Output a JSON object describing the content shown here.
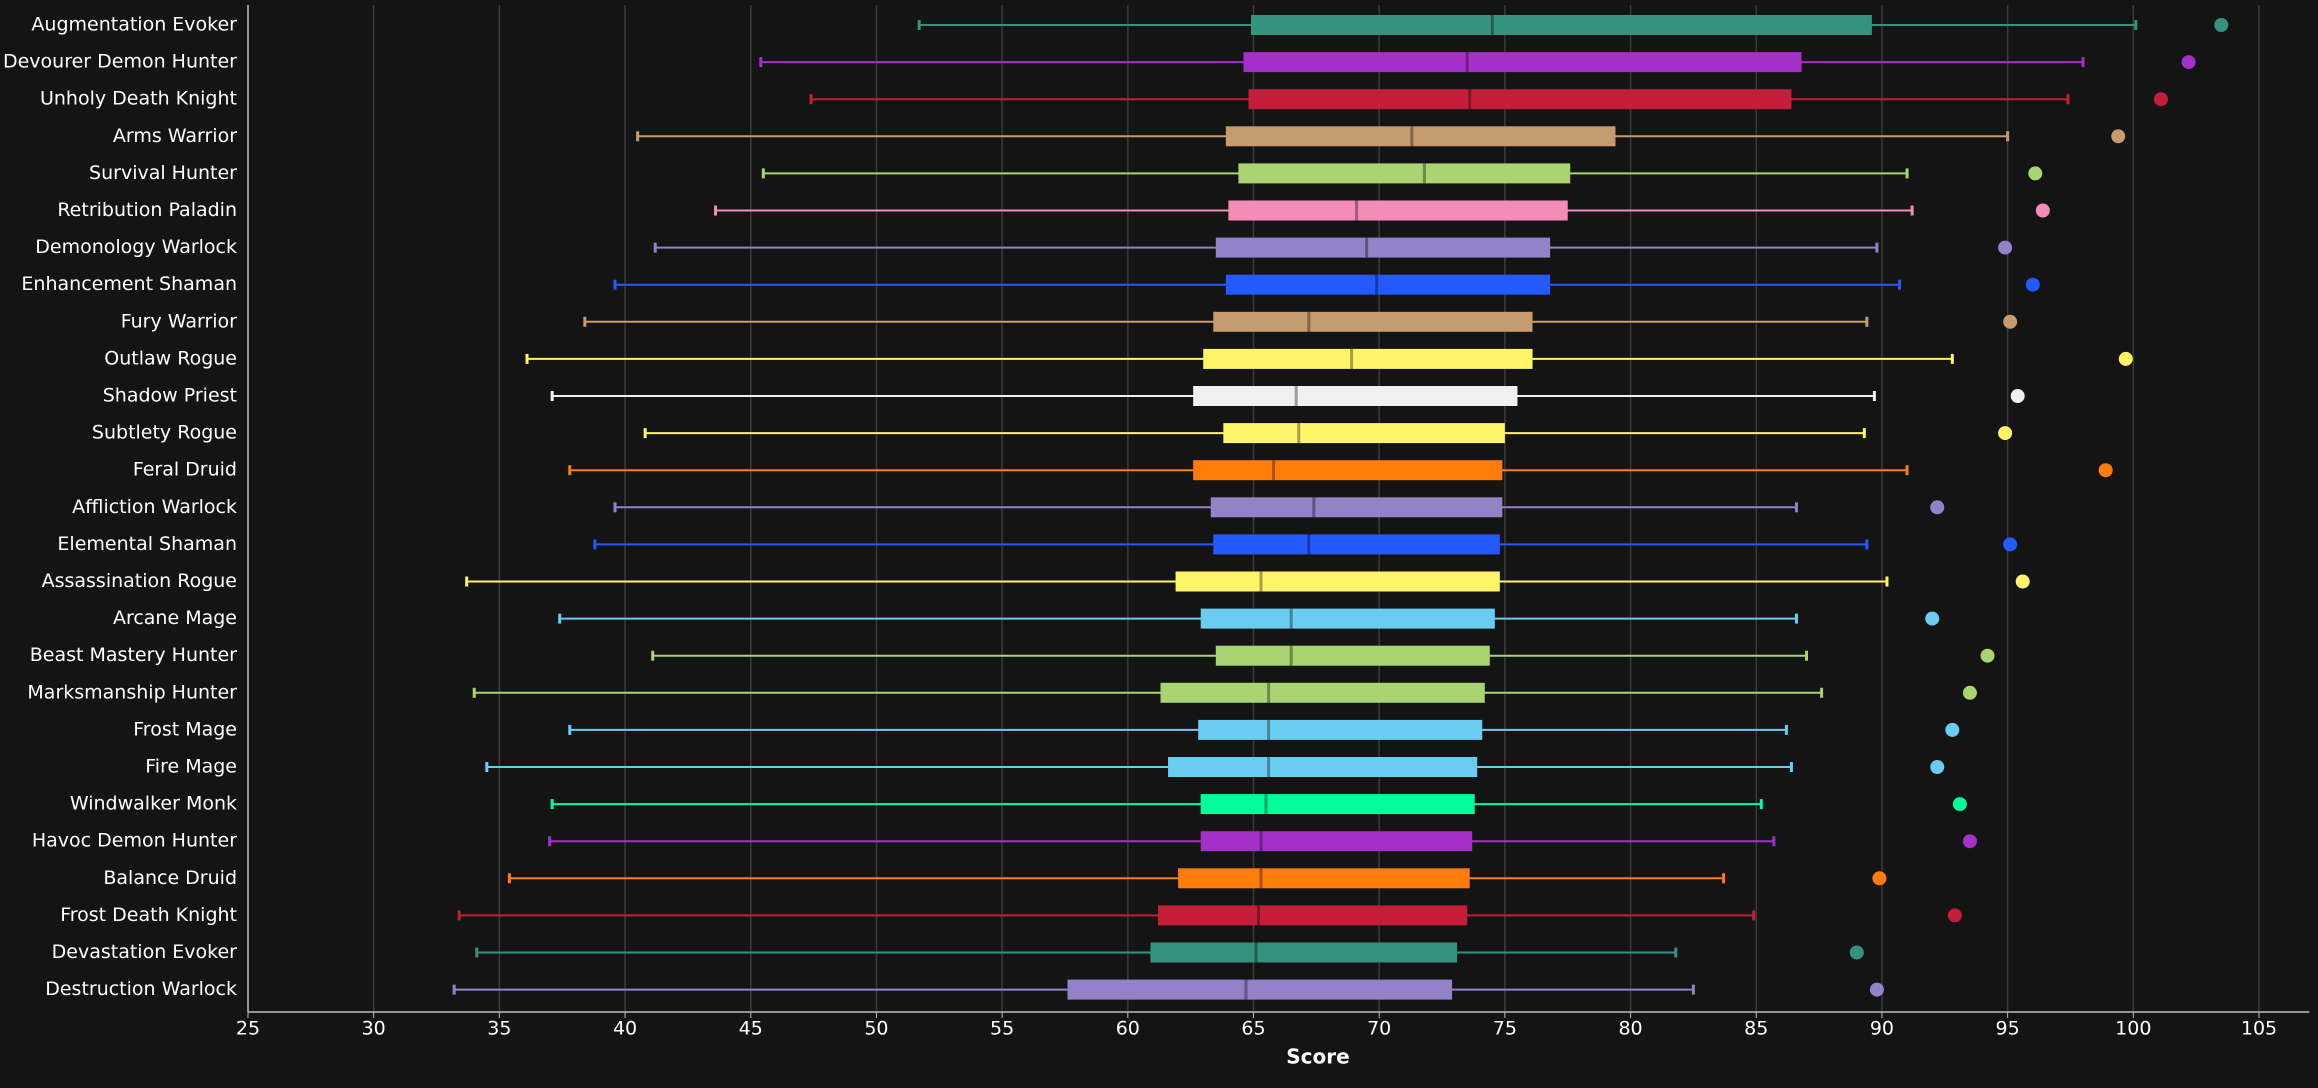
{
  "chart_data": {
    "type": "boxplot",
    "x_label": "Score",
    "xlim": [
      25,
      107
    ],
    "xticks": [
      25,
      30,
      35,
      40,
      45,
      50,
      55,
      60,
      65,
      70,
      75,
      80,
      85,
      90,
      95,
      100,
      105
    ],
    "grid": true,
    "categories": [
      "Augmentation Evoker",
      "Devourer Demon Hunter",
      "Unholy Death Knight",
      "Arms Warrior",
      "Survival Hunter",
      "Retribution Paladin",
      "Demonology Warlock",
      "Enhancement Shaman",
      "Fury Warrior",
      "Outlaw Rogue",
      "Shadow Priest",
      "Subtlety Rogue",
      "Feral Druid",
      "Affliction Warlock",
      "Elemental Shaman",
      "Assassination Rogue",
      "Arcane Mage",
      "Beast Mastery Hunter",
      "Marksmanship Hunter",
      "Frost Mage",
      "Fire Mage",
      "Windwalker Monk",
      "Havoc Demon Hunter",
      "Balance Druid",
      "Frost Death Knight",
      "Devastation Evoker",
      "Destruction Warlock"
    ],
    "boxes": [
      {
        "min": 51.7,
        "q1": 64.9,
        "median": 74.5,
        "q3": 89.6,
        "max": 100.1,
        "outlier": 103.5,
        "color": "#33937f"
      },
      {
        "min": 45.4,
        "q1": 64.6,
        "median": 73.5,
        "q3": 86.8,
        "max": 98.0,
        "outlier": 102.2,
        "color": "#a330c9"
      },
      {
        "min": 47.4,
        "q1": 64.8,
        "median": 73.6,
        "q3": 86.4,
        "max": 97.4,
        "outlier": 101.1,
        "color": "#c41e3a"
      },
      {
        "min": 40.5,
        "q1": 63.9,
        "median": 71.3,
        "q3": 79.4,
        "max": 95.0,
        "outlier": 99.4,
        "color": "#c69b6d"
      },
      {
        "min": 45.5,
        "q1": 64.4,
        "median": 71.8,
        "q3": 77.6,
        "max": 91.0,
        "outlier": 96.1,
        "color": "#aad372"
      },
      {
        "min": 43.6,
        "q1": 64.0,
        "median": 69.1,
        "q3": 77.5,
        "max": 91.2,
        "outlier": 96.4,
        "color": "#f48cba"
      },
      {
        "min": 41.2,
        "q1": 63.5,
        "median": 69.5,
        "q3": 76.8,
        "max": 89.8,
        "outlier": 94.9,
        "color": "#9482c9"
      },
      {
        "min": 39.6,
        "q1": 63.9,
        "median": 69.9,
        "q3": 76.8,
        "max": 90.7,
        "outlier": 96.0,
        "color": "#2459ff"
      },
      {
        "min": 38.4,
        "q1": 63.4,
        "median": 67.2,
        "q3": 76.1,
        "max": 89.4,
        "outlier": 95.1,
        "color": "#c69b6d"
      },
      {
        "min": 36.1,
        "q1": 63.0,
        "median": 68.9,
        "q3": 76.1,
        "max": 92.8,
        "outlier": 99.7,
        "color": "#fff468"
      },
      {
        "min": 37.1,
        "q1": 62.6,
        "median": 66.7,
        "q3": 75.5,
        "max": 89.7,
        "outlier": 95.4,
        "color": "#f0f0f0"
      },
      {
        "min": 40.8,
        "q1": 63.8,
        "median": 66.8,
        "q3": 75.0,
        "max": 89.3,
        "outlier": 94.9,
        "color": "#fff468"
      },
      {
        "min": 37.8,
        "q1": 62.6,
        "median": 65.8,
        "q3": 74.9,
        "max": 91.0,
        "outlier": 98.9,
        "color": "#ff7c0a"
      },
      {
        "min": 39.6,
        "q1": 63.3,
        "median": 67.4,
        "q3": 74.9,
        "max": 86.6,
        "outlier": 92.2,
        "color": "#9482c9"
      },
      {
        "min": 38.8,
        "q1": 63.4,
        "median": 67.2,
        "q3": 74.8,
        "max": 89.4,
        "outlier": 95.1,
        "color": "#2459ff"
      },
      {
        "min": 33.7,
        "q1": 61.9,
        "median": 65.3,
        "q3": 74.8,
        "max": 90.2,
        "outlier": 95.6,
        "color": "#fff468"
      },
      {
        "min": 37.4,
        "q1": 62.9,
        "median": 66.5,
        "q3": 74.6,
        "max": 86.6,
        "outlier": 92.0,
        "color": "#69ccf0"
      },
      {
        "min": 41.1,
        "q1": 63.5,
        "median": 66.5,
        "q3": 74.4,
        "max": 87.0,
        "outlier": 94.2,
        "color": "#aad372"
      },
      {
        "min": 34.0,
        "q1": 61.3,
        "median": 65.6,
        "q3": 74.2,
        "max": 87.6,
        "outlier": 93.5,
        "color": "#aad372"
      },
      {
        "min": 37.8,
        "q1": 62.8,
        "median": 65.6,
        "q3": 74.1,
        "max": 86.2,
        "outlier": 92.8,
        "color": "#69ccf0"
      },
      {
        "min": 34.5,
        "q1": 61.6,
        "median": 65.6,
        "q3": 73.9,
        "max": 86.4,
        "outlier": 92.2,
        "color": "#69ccf0"
      },
      {
        "min": 37.1,
        "q1": 62.9,
        "median": 65.5,
        "q3": 73.8,
        "max": 85.2,
        "outlier": 93.1,
        "color": "#00ff98"
      },
      {
        "min": 37.0,
        "q1": 62.9,
        "median": 65.3,
        "q3": 73.7,
        "max": 85.7,
        "outlier": 93.5,
        "color": "#a330c9"
      },
      {
        "min": 35.4,
        "q1": 62.0,
        "median": 65.3,
        "q3": 73.6,
        "max": 83.7,
        "outlier": 89.9,
        "color": "#ff7c0a"
      },
      {
        "min": 33.4,
        "q1": 61.2,
        "median": 65.2,
        "q3": 73.5,
        "max": 84.9,
        "outlier": 92.9,
        "color": "#c41e3a"
      },
      {
        "min": 34.1,
        "q1": 60.9,
        "median": 65.1,
        "q3": 73.1,
        "max": 81.8,
        "outlier": 89.0,
        "color": "#33937f"
      },
      {
        "min": 33.2,
        "q1": 57.6,
        "median": 64.7,
        "q3": 72.9,
        "max": 82.5,
        "outlier": 89.8,
        "color": "#9482c9"
      }
    ]
  }
}
